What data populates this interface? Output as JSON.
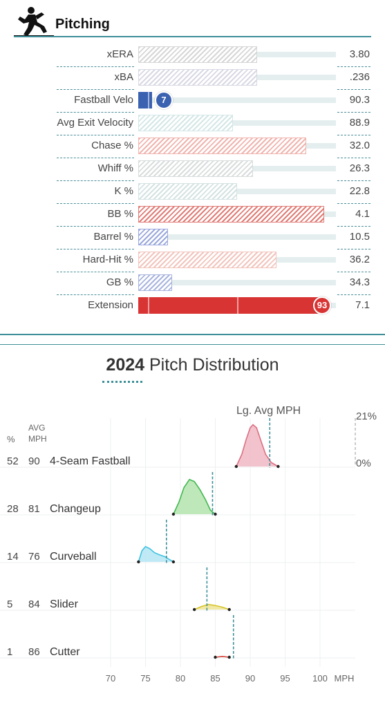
{
  "header": {
    "title": "Pitching",
    "icon": "pitcher-icon"
  },
  "metrics": [
    {
      "label": "xERA",
      "value": "3.80",
      "percentile": 60,
      "color": "#d6d6d6",
      "pattern": "hatch"
    },
    {
      "label": "xBA",
      "value": ".236",
      "percentile": 60,
      "color": "#d8d8e4",
      "pattern": "hatch"
    },
    {
      "label": "Fastball Velo",
      "value": "90.3",
      "percentile": 7,
      "color": "#3b61b1",
      "pattern": "solid",
      "badge": "7"
    },
    {
      "label": "Avg Exit Velocity",
      "value": "88.9",
      "percentile": 48,
      "color": "#d4e6e6",
      "pattern": "hatch"
    },
    {
      "label": "Chase %",
      "value": "32.0",
      "percentile": 85,
      "color": "#f0b4ae",
      "pattern": "hatch"
    },
    {
      "label": "Whiff %",
      "value": "26.3",
      "percentile": 58,
      "color": "#d8dcdc",
      "pattern": "hatch"
    },
    {
      "label": "K %",
      "value": "22.8",
      "percentile": 50,
      "color": "#d4e2e2",
      "pattern": "hatch"
    },
    {
      "label": "BB %",
      "value": "4.1",
      "percentile": 94,
      "color": "#e07c76",
      "pattern": "hatch"
    },
    {
      "label": "Barrel %",
      "value": "10.5",
      "percentile": 15,
      "color": "#9aa8dc",
      "pattern": "hatch"
    },
    {
      "label": "Hard-Hit %",
      "value": "36.2",
      "percentile": 70,
      "color": "#f2c4bc",
      "pattern": "hatch"
    },
    {
      "label": "GB %",
      "value": "34.3",
      "percentile": 17,
      "color": "#a8b4de",
      "pattern": "hatch"
    },
    {
      "label": "Extension",
      "value": "7.1",
      "percentile": 93,
      "color": "#d93434",
      "pattern": "solid",
      "badge": "93"
    }
  ],
  "distribution": {
    "title_year": "2024",
    "title_text": " Pitch Distribution",
    "legend_label": "Lg. Avg MPH",
    "density_max_label": "21%",
    "density_min_label": "0%",
    "col_pct": "%",
    "col_avg_line1": "AVG",
    "col_avg_line2": "MPH"
  },
  "chart_data": {
    "type": "area",
    "title": "2024 Pitch Distribution",
    "xlabel": "MPH",
    "xlim": [
      67,
      105
    ],
    "x_ticks": [
      "70",
      "75",
      "80",
      "85",
      "90",
      "95",
      "100"
    ],
    "x_unit": "MPH",
    "density_scale": [
      "0%",
      "21%"
    ],
    "series": [
      {
        "name": "4-Seam Fastball",
        "pct": "52",
        "avg_mph": "90",
        "lg_avg": 92.8,
        "color": "#dc6f82",
        "fill": "#f1bcc6",
        "x": [
          88,
          88.8,
          89.4,
          90,
          90.4,
          90.9,
          91.5,
          92.2,
          93,
          94
        ],
        "y": [
          0,
          6,
          13,
          19,
          20.5,
          19,
          13,
          6,
          2,
          0
        ]
      },
      {
        "name": "Changeup",
        "pct": "28",
        "avg_mph": "81",
        "lg_avg": 84.6,
        "color": "#41b84e",
        "fill": "#b8e6b2",
        "x": [
          79,
          79.8,
          80.5,
          81.3,
          82,
          82.8,
          83.6,
          84.3,
          85
        ],
        "y": [
          0,
          6,
          13,
          17,
          16,
          12,
          7,
          2,
          0
        ]
      },
      {
        "name": "Curveball",
        "pct": "14",
        "avg_mph": "76",
        "lg_avg": 78,
        "color": "#3ec2e0",
        "fill": "#b8e8f4",
        "x": [
          74,
          74.5,
          75,
          75.6,
          76.3,
          77,
          77.8,
          78.5,
          79
        ],
        "y": [
          0,
          5.5,
          7.5,
          6.5,
          4.5,
          3.5,
          2.5,
          1,
          0
        ]
      },
      {
        "name": "Slider",
        "pct": "5",
        "avg_mph": "84",
        "lg_avg": 83.8,
        "color": "#d6c42a",
        "fill": "#f0e69a",
        "x": [
          82,
          83,
          84,
          85,
          86,
          87
        ],
        "y": [
          0,
          1.5,
          2.5,
          2,
          1.2,
          0
        ]
      },
      {
        "name": "Cutter",
        "pct": "1",
        "avg_mph": "86",
        "lg_avg": 87.6,
        "color": "#d6433a",
        "fill": "#f4b8b4",
        "x": [
          85,
          86,
          87
        ],
        "y": [
          0,
          0.4,
          0
        ]
      }
    ]
  }
}
